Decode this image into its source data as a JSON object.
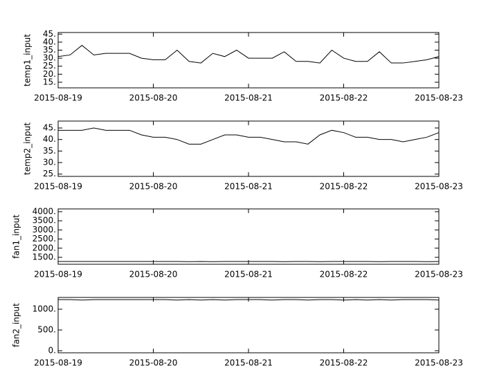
{
  "chart_data": [
    {
      "type": "line",
      "ylabel": "temp1_input",
      "x": [
        "2015-08-19 00:00",
        "2015-08-19 03:00",
        "2015-08-19 06:00",
        "2015-08-19 09:00",
        "2015-08-19 12:00",
        "2015-08-19 15:00",
        "2015-08-19 18:00",
        "2015-08-19 21:00",
        "2015-08-20 00:00",
        "2015-08-20 03:00",
        "2015-08-20 06:00",
        "2015-08-20 09:00",
        "2015-08-20 12:00",
        "2015-08-20 15:00",
        "2015-08-20 18:00",
        "2015-08-20 21:00",
        "2015-08-21 00:00",
        "2015-08-21 03:00",
        "2015-08-21 06:00",
        "2015-08-21 09:00",
        "2015-08-21 12:00",
        "2015-08-21 15:00",
        "2015-08-21 18:00",
        "2015-08-21 21:00",
        "2015-08-22 00:00",
        "2015-08-22 03:00",
        "2015-08-22 06:00",
        "2015-08-22 09:00",
        "2015-08-22 12:00",
        "2015-08-22 15:00",
        "2015-08-22 18:00",
        "2015-08-22 21:00",
        "2015-08-23 00:00"
      ],
      "series": [
        {
          "name": "temp1_input",
          "color": "#000000",
          "values": [
            31,
            32,
            38,
            32,
            33,
            33,
            33,
            30,
            29,
            29,
            35,
            28,
            27,
            33,
            31,
            35,
            30,
            30,
            30,
            34,
            28,
            28,
            27,
            35,
            30,
            28,
            28,
            34,
            27,
            27,
            28,
            29,
            31
          ]
        }
      ],
      "xlim": [
        "2015-08-19",
        "2015-08-23"
      ],
      "xticks": [
        "2015-08-19",
        "2015-08-20",
        "2015-08-21",
        "2015-08-22",
        "2015-08-23"
      ],
      "ylim": [
        11.5,
        46
      ],
      "yticks": [
        {
          "value": 15,
          "label": "15."
        },
        {
          "value": 20,
          "label": "20."
        },
        {
          "value": 25,
          "label": "25."
        },
        {
          "value": 30,
          "label": "30."
        },
        {
          "value": 35,
          "label": "35."
        },
        {
          "value": 40,
          "label": "40."
        },
        {
          "value": 45,
          "label": "45."
        }
      ]
    },
    {
      "type": "line",
      "ylabel": "temp2_input",
      "x": [
        "2015-08-19 00:00",
        "2015-08-19 03:00",
        "2015-08-19 06:00",
        "2015-08-19 09:00",
        "2015-08-19 12:00",
        "2015-08-19 15:00",
        "2015-08-19 18:00",
        "2015-08-19 21:00",
        "2015-08-20 00:00",
        "2015-08-20 03:00",
        "2015-08-20 06:00",
        "2015-08-20 09:00",
        "2015-08-20 12:00",
        "2015-08-20 15:00",
        "2015-08-20 18:00",
        "2015-08-20 21:00",
        "2015-08-21 00:00",
        "2015-08-21 03:00",
        "2015-08-21 06:00",
        "2015-08-21 09:00",
        "2015-08-21 12:00",
        "2015-08-21 15:00",
        "2015-08-21 18:00",
        "2015-08-21 21:00",
        "2015-08-22 00:00",
        "2015-08-22 03:00",
        "2015-08-22 06:00",
        "2015-08-22 09:00",
        "2015-08-22 12:00",
        "2015-08-22 15:00",
        "2015-08-22 18:00",
        "2015-08-22 21:00",
        "2015-08-23 00:00"
      ],
      "series": [
        {
          "name": "temp2_input",
          "color": "#000000",
          "values": [
            44,
            44,
            44,
            45,
            44,
            44,
            44,
            42,
            41,
            41,
            40,
            38,
            38,
            40,
            42,
            42,
            41,
            41,
            40,
            39,
            39,
            38,
            42,
            44,
            43,
            41,
            41,
            40,
            40,
            39,
            40,
            41,
            43
          ]
        }
      ],
      "xlim": [
        "2015-08-19",
        "2015-08-23"
      ],
      "xticks": [
        "2015-08-19",
        "2015-08-20",
        "2015-08-21",
        "2015-08-22",
        "2015-08-23"
      ],
      "ylim": [
        24,
        48
      ],
      "yticks": [
        {
          "value": 25,
          "label": "25."
        },
        {
          "value": 30,
          "label": "30."
        },
        {
          "value": 35,
          "label": "35."
        },
        {
          "value": 40,
          "label": "40."
        },
        {
          "value": 45,
          "label": "45."
        }
      ]
    },
    {
      "type": "line",
      "ylabel": "fan1_input",
      "x": [
        "2015-08-19 00:00",
        "2015-08-19 03:00",
        "2015-08-19 06:00",
        "2015-08-19 09:00",
        "2015-08-19 12:00",
        "2015-08-19 15:00",
        "2015-08-19 18:00",
        "2015-08-19 21:00",
        "2015-08-20 00:00",
        "2015-08-20 03:00",
        "2015-08-20 06:00",
        "2015-08-20 09:00",
        "2015-08-20 12:00",
        "2015-08-20 15:00",
        "2015-08-20 18:00",
        "2015-08-20 21:00",
        "2015-08-21 00:00",
        "2015-08-21 03:00",
        "2015-08-21 06:00",
        "2015-08-21 09:00",
        "2015-08-21 12:00",
        "2015-08-21 15:00",
        "2015-08-21 18:00",
        "2015-08-21 21:00",
        "2015-08-22 00:00",
        "2015-08-22 03:00",
        "2015-08-22 06:00",
        "2015-08-22 09:00",
        "2015-08-22 12:00",
        "2015-08-22 15:00",
        "2015-08-22 18:00",
        "2015-08-22 21:00",
        "2015-08-23 00:00"
      ],
      "series": [
        {
          "name": "fan1_input",
          "color": "#000000",
          "values": [
            1270,
            1270,
            1270,
            1270,
            1270,
            1270,
            1270,
            1270,
            1270,
            1270,
            1270,
            1260,
            1270,
            1260,
            1270,
            1270,
            1270,
            1270,
            1270,
            1260,
            1270,
            1270,
            1260,
            1270,
            1270,
            1270,
            1270,
            1260,
            1270,
            1270,
            1270,
            1260,
            1270
          ]
        }
      ],
      "xlim": [
        "2015-08-19",
        "2015-08-23"
      ],
      "xticks": [
        "2015-08-19",
        "2015-08-20",
        "2015-08-21",
        "2015-08-22",
        "2015-08-23"
      ],
      "ylim": [
        1120,
        4150
      ],
      "yticks": [
        {
          "value": 1500,
          "label": "1500."
        },
        {
          "value": 2000,
          "label": "2000."
        },
        {
          "value": 2500,
          "label": "2500."
        },
        {
          "value": 3000,
          "label": "3000."
        },
        {
          "value": 3500,
          "label": "3500."
        },
        {
          "value": 4000,
          "label": "4000."
        }
      ]
    },
    {
      "type": "line",
      "ylabel": "fan2_input",
      "x": [
        "2015-08-19 00:00",
        "2015-08-19 03:00",
        "2015-08-19 06:00",
        "2015-08-19 09:00",
        "2015-08-19 12:00",
        "2015-08-19 15:00",
        "2015-08-19 18:00",
        "2015-08-19 21:00",
        "2015-08-20 00:00",
        "2015-08-20 03:00",
        "2015-08-20 06:00",
        "2015-08-20 09:00",
        "2015-08-20 12:00",
        "2015-08-20 15:00",
        "2015-08-20 18:00",
        "2015-08-20 21:00",
        "2015-08-21 00:00",
        "2015-08-21 03:00",
        "2015-08-21 06:00",
        "2015-08-21 09:00",
        "2015-08-21 12:00",
        "2015-08-21 15:00",
        "2015-08-21 18:00",
        "2015-08-21 21:00",
        "2015-08-22 00:00",
        "2015-08-22 03:00",
        "2015-08-22 06:00",
        "2015-08-22 09:00",
        "2015-08-22 12:00",
        "2015-08-22 15:00",
        "2015-08-22 18:00",
        "2015-08-22 21:00",
        "2015-08-23 00:00"
      ],
      "series": [
        {
          "name": "fan2_input",
          "color": "#000000",
          "values": [
            1230,
            1230,
            1220,
            1230,
            1230,
            1230,
            1230,
            1230,
            1230,
            1230,
            1220,
            1230,
            1220,
            1230,
            1220,
            1230,
            1230,
            1230,
            1220,
            1230,
            1230,
            1220,
            1230,
            1230,
            1220,
            1230,
            1220,
            1230,
            1220,
            1230,
            1230,
            1230,
            1220
          ]
        }
      ],
      "xlim": [
        "2015-08-19",
        "2015-08-23"
      ],
      "xticks": [
        "2015-08-19",
        "2015-08-20",
        "2015-08-21",
        "2015-08-22",
        "2015-08-23"
      ],
      "ylim": [
        -50,
        1283
      ],
      "yticks": [
        {
          "value": 0,
          "label": "0."
        },
        {
          "value": 500,
          "label": "500."
        },
        {
          "value": 1000,
          "label": "1000."
        }
      ]
    }
  ]
}
